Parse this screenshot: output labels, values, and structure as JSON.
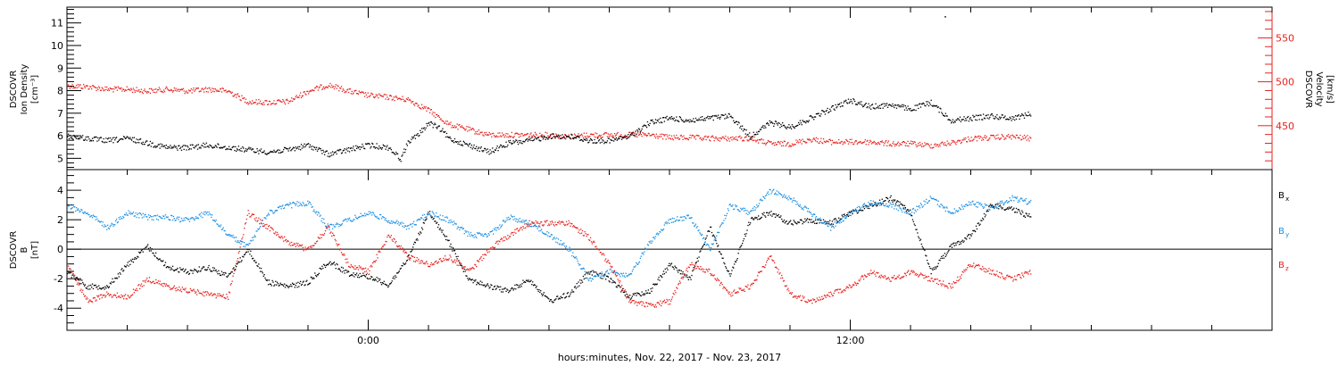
{
  "colors": {
    "black": "#000000",
    "red": "#e8211d",
    "blue": "#1a8fe3"
  },
  "x_axis": {
    "title": "hours:minutes, Nov. 22, 2017 - Nov. 23, 2017",
    "range_hours": [
      -7.5,
      22.5
    ],
    "ticks": [
      {
        "hours": 0,
        "label": "0:00"
      },
      {
        "hours": 12,
        "label": "12:00"
      }
    ],
    "minor_step_hours": 1.5
  },
  "chart_data": [
    {
      "type": "scatter",
      "panel": "plasma",
      "ylabel_left": [
        "DSCOVR",
        "Ion Density",
        "[cm⁻³]"
      ],
      "ylabel_right": [
        "DSCOVR",
        "Velocity",
        "[km/s]"
      ],
      "ylim_left": [
        4.5,
        11.7
      ],
      "ylim_right": [
        400,
        585
      ],
      "left_ticks": [
        "5",
        "6",
        "7",
        "8",
        "9",
        "10",
        "11"
      ],
      "right_ticks": [
        "450",
        "500",
        "550"
      ],
      "grid": false,
      "series": [
        {
          "axis": "left",
          "color": "black",
          "x": [
            -7.5,
            -7,
            -6.5,
            -6,
            -5.5,
            -5,
            -4.5,
            -4,
            -3.5,
            -3,
            -2.5,
            -2,
            -1.5,
            -1,
            -0.5,
            0,
            0.5,
            0.8,
            1,
            1.2,
            1.5,
            1.8,
            2,
            2.5,
            3,
            3.5,
            4,
            4.5,
            5,
            5.5,
            6,
            6.5,
            7,
            7.5,
            8,
            8.5,
            9,
            9.5,
            10,
            10.5,
            11,
            11.5,
            12,
            12.5,
            13,
            13.5,
            14,
            14.5,
            15,
            15.5,
            16,
            16.5
          ],
          "y": [
            6.0,
            5.9,
            5.8,
            5.9,
            5.7,
            5.5,
            5.5,
            5.6,
            5.5,
            5.4,
            5.3,
            5.4,
            5.6,
            5.2,
            5.4,
            5.6,
            5.5,
            5.0,
            5.8,
            6.0,
            6.6,
            6.3,
            5.9,
            5.6,
            5.3,
            5.7,
            5.8,
            6.0,
            6.0,
            5.8,
            5.8,
            6.0,
            6.6,
            6.8,
            6.7,
            6.8,
            6.9,
            6.0,
            6.6,
            6.4,
            6.8,
            7.2,
            7.6,
            7.3,
            7.4,
            7.2,
            7.5,
            6.7,
            6.8,
            6.9,
            6.8,
            7.0
          ]
        },
        {
          "axis": "right",
          "color": "red",
          "x": [
            -7.5,
            -7,
            -6.5,
            -6,
            -5.5,
            -5,
            -4.5,
            -4,
            -3.5,
            -3,
            -2.5,
            -2,
            -1.5,
            -1,
            -0.5,
            0,
            0.5,
            1,
            1.5,
            2,
            2.5,
            3,
            3.5,
            4,
            4.5,
            5,
            5.5,
            6,
            6.5,
            7,
            7.5,
            8,
            8.5,
            9,
            9.5,
            10,
            10.5,
            11,
            11.5,
            12,
            12.5,
            13,
            13.5,
            14,
            14.5,
            15,
            15.5,
            16,
            16.5
          ],
          "y": [
            496,
            495,
            492,
            492,
            490,
            492,
            490,
            492,
            490,
            478,
            477,
            478,
            490,
            497,
            490,
            485,
            483,
            480,
            468,
            452,
            446,
            440,
            440,
            440,
            440,
            438,
            440,
            440,
            440,
            440,
            437,
            437,
            436,
            436,
            436,
            430,
            430,
            435,
            432,
            432,
            432,
            430,
            430,
            428,
            431,
            436,
            437,
            438,
            436
          ]
        }
      ]
    },
    {
      "type": "scatter",
      "panel": "magnetic",
      "ylabel": [
        "DSCOVR",
        "B",
        "[nT]"
      ],
      "ylim": [
        -5.5,
        5.4
      ],
      "y_ticks": [
        "-4",
        "-2",
        "0",
        "2",
        "4"
      ],
      "zero_line": true,
      "grid": false,
      "series": [
        {
          "name_base": "B",
          "name_sub": "x",
          "color": "black",
          "x": [
            -7.5,
            -7,
            -6.5,
            -6,
            -5.5,
            -5,
            -4.5,
            -4,
            -3.5,
            -3,
            -2.5,
            -2,
            -1.5,
            -1,
            -0.5,
            0,
            0.5,
            1,
            1.5,
            2,
            2.5,
            3,
            3.5,
            4,
            4.5,
            5,
            5.5,
            6,
            6.5,
            7,
            7.5,
            8,
            8.5,
            9,
            9.5,
            10,
            10.5,
            11,
            11.5,
            12,
            12.5,
            13,
            13.5,
            14,
            14.5,
            15,
            15.5,
            16,
            16.5
          ],
          "y": [
            -1.5,
            -2.5,
            -2.5,
            -1.0,
            0.2,
            -1.2,
            -1.5,
            -1.2,
            -1.8,
            0.0,
            -2.2,
            -2.5,
            -2.2,
            -0.8,
            -1.6,
            -1.8,
            -2.4,
            -0.5,
            2.5,
            0.5,
            -2.0,
            -2.5,
            -2.8,
            -2.0,
            -3.5,
            -3.0,
            -1.5,
            -2.0,
            -3.2,
            -2.8,
            -1.0,
            -2.0,
            1.5,
            -1.8,
            2.0,
            2.5,
            1.8,
            2.0,
            1.8,
            2.5,
            3.0,
            3.5,
            2.5,
            -1.5,
            0.2,
            1.0,
            3.0,
            2.8,
            2.2
          ]
        },
        {
          "name_base": "B",
          "name_sub": "y",
          "color": "blue",
          "x": [
            -7.5,
            -7,
            -6.5,
            -6,
            -5.5,
            -5,
            -4.5,
            -4,
            -3.5,
            -3,
            -2.5,
            -2,
            -1.5,
            -1,
            -0.5,
            0,
            0.5,
            1,
            1.5,
            2,
            2.5,
            3,
            3.5,
            4,
            4.5,
            5,
            5.5,
            6,
            6.5,
            7,
            7.5,
            8,
            8.5,
            9,
            9.5,
            10,
            10.5,
            11,
            11.5,
            12,
            12.5,
            13,
            13.5,
            14,
            14.5,
            15,
            15.5,
            16,
            16.5
          ],
          "y": [
            3.0,
            2.5,
            1.5,
            2.5,
            2.2,
            2.2,
            2.0,
            2.5,
            1.0,
            0.2,
            2.5,
            3.0,
            3.2,
            1.5,
            2.0,
            2.5,
            2.0,
            1.5,
            2.5,
            2.0,
            1.0,
            1.0,
            2.2,
            1.8,
            1.0,
            0.0,
            -2.0,
            -1.5,
            -1.8,
            0.5,
            2.0,
            2.2,
            0.0,
            3.0,
            2.5,
            4.0,
            3.5,
            2.5,
            1.5,
            2.5,
            3.2,
            3.0,
            2.5,
            3.5,
            2.5,
            3.2,
            2.8,
            3.5,
            3.2
          ]
        },
        {
          "name_base": "B",
          "name_sub": "z",
          "color": "red",
          "x": [
            -7.5,
            -7,
            -6.5,
            -6,
            -5.5,
            -5,
            -4.5,
            -4,
            -3.5,
            -3,
            -2.5,
            -2,
            -1.5,
            -1,
            -0.5,
            0,
            0.5,
            1,
            1.5,
            2,
            2.5,
            3,
            3.5,
            4,
            4.5,
            5,
            5.5,
            6,
            6.5,
            7,
            7.5,
            8,
            8.5,
            9,
            9.5,
            10,
            10.5,
            11,
            11.5,
            12,
            12.5,
            13,
            13.5,
            14,
            14.5,
            15,
            15.5,
            16,
            16.5
          ],
          "y": [
            -1.0,
            -3.5,
            -3.0,
            -3.2,
            -2.0,
            -2.5,
            -2.8,
            -3.0,
            -3.2,
            2.5,
            1.5,
            0.5,
            0.0,
            1.5,
            -1.0,
            -1.5,
            1.0,
            -0.5,
            -1.0,
            -0.5,
            -1.5,
            0.0,
            1.0,
            1.8,
            1.8,
            1.8,
            0.8,
            -1.0,
            -3.5,
            -3.8,
            -3.5,
            -1.0,
            -1.5,
            -3.0,
            -2.5,
            -0.5,
            -3.0,
            -3.5,
            -3.0,
            -2.5,
            -1.5,
            -2.0,
            -1.5,
            -2.0,
            -2.5,
            -1.0,
            -1.5,
            -2.0,
            -1.5
          ]
        }
      ]
    }
  ]
}
